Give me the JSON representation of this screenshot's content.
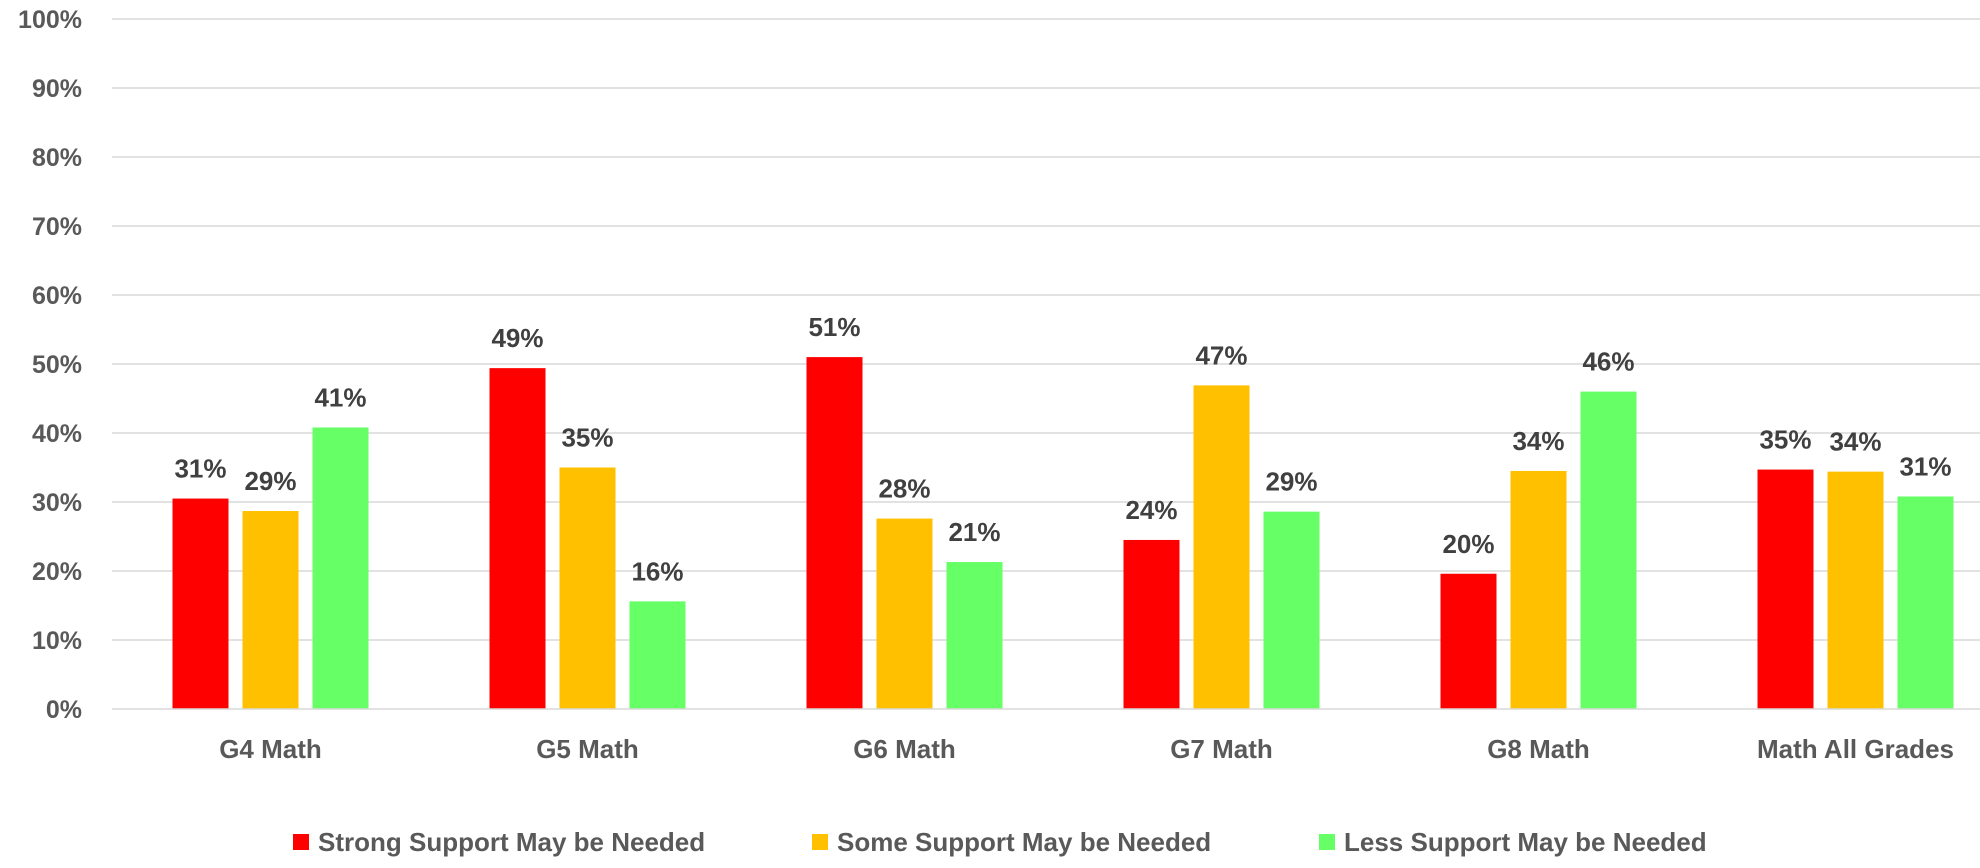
{
  "chart_data": {
    "type": "bar",
    "title": "",
    "xlabel": "",
    "ylabel": "",
    "ylim": [
      0,
      100
    ],
    "y_ticks": [
      "0%",
      "10%",
      "20%",
      "30%",
      "40%",
      "50%",
      "60%",
      "70%",
      "80%",
      "90%",
      "100%"
    ],
    "y_tick_values": [
      0,
      10,
      20,
      30,
      40,
      50,
      60,
      70,
      80,
      90,
      100
    ],
    "grid": true,
    "legend_position": "bottom",
    "categories": [
      "G4 Math",
      "G5 Math",
      "G6 Math",
      "G7 Math",
      "G8 Math",
      "Math All Grades"
    ],
    "series": [
      {
        "name": "Strong Support May be Needed",
        "color": "#ff0000",
        "values": [
          30.5,
          49.4,
          51.0,
          24.5,
          19.6,
          34.7
        ],
        "labels": [
          "31%",
          "49%",
          "51%",
          "24%",
          "20%",
          "35%"
        ]
      },
      {
        "name": "Some Support May be Needed",
        "color": "#ffc000",
        "values": [
          28.7,
          35.0,
          27.6,
          46.9,
          34.5,
          34.4
        ],
        "labels": [
          "29%",
          "35%",
          "28%",
          "47%",
          "34%",
          "34%"
        ]
      },
      {
        "name": "Less Support May be Needed",
        "color": "#66ff66",
        "values": [
          40.8,
          15.6,
          21.3,
          28.6,
          46.0,
          30.8
        ],
        "labels": [
          "41%",
          "16%",
          "21%",
          "29%",
          "46%",
          "31%"
        ]
      }
    ]
  }
}
